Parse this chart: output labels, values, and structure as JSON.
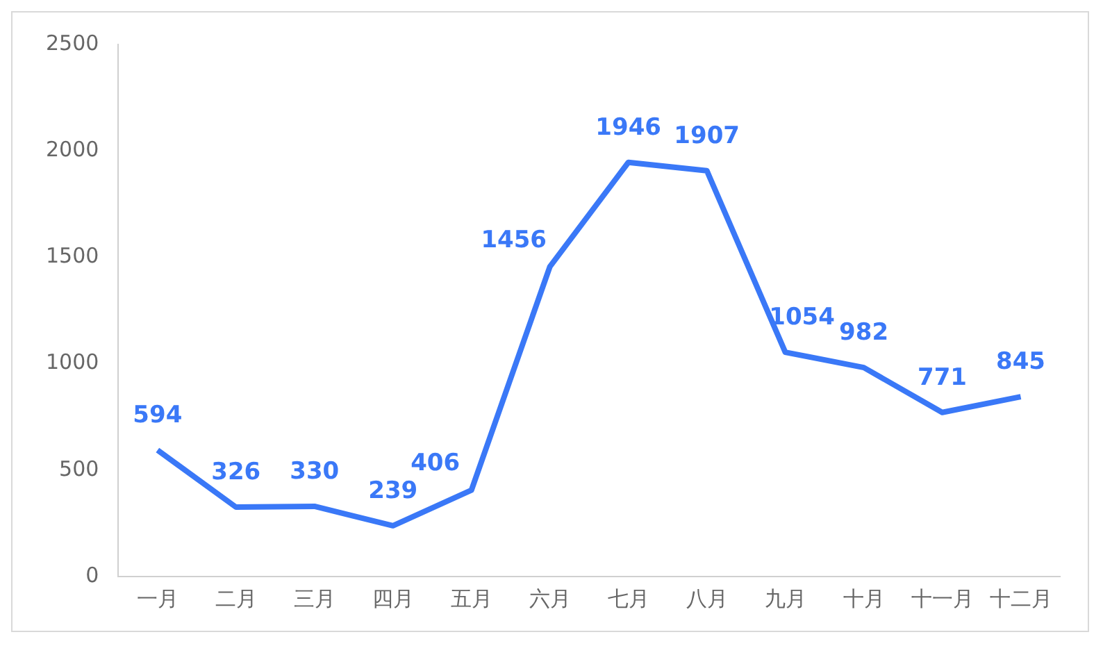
{
  "chart_data": {
    "type": "line",
    "categories": [
      "一月",
      "二月",
      "三月",
      "四月",
      "五月",
      "六月",
      "七月",
      "八月",
      "九月",
      "十月",
      "十一月",
      "十二月"
    ],
    "values": [
      594,
      326,
      330,
      239,
      406,
      1456,
      1946,
      1907,
      1054,
      982,
      771,
      845
    ],
    "color": "#3a78f7",
    "ylim": [
      0,
      2500
    ],
    "yticks": [
      0,
      500,
      1000,
      1500,
      2000,
      2500
    ],
    "grid": false,
    "data_labels": true,
    "legend": false
  }
}
